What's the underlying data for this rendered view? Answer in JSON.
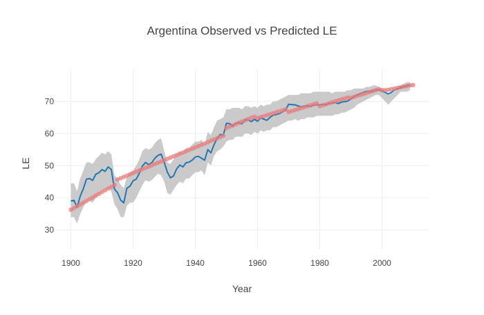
{
  "chart_data": {
    "type": "line",
    "title": "Argentina Observed vs Predicted LE",
    "xlabel": "Year",
    "ylabel": "LE",
    "xlim": [
      1895,
      2015
    ],
    "ylim": [
      24,
      80
    ],
    "x_ticks": [
      1900,
      1920,
      1940,
      1960,
      1980,
      2000
    ],
    "y_ticks": [
      30,
      40,
      50,
      60,
      70
    ],
    "grid": true,
    "legend": "none",
    "colors": {
      "observed": "#1f77b4",
      "predicted": "#e87b7b",
      "band": "#c4c4c4"
    },
    "series": [
      {
        "kind": "band",
        "x": [
          1900,
          1901,
          1902,
          1903,
          1904,
          1905,
          1906,
          1907,
          1908,
          1909,
          1910,
          1911,
          1912,
          1913,
          1914,
          1915,
          1916,
          1917,
          1918,
          1919,
          1920,
          1921,
          1922,
          1923,
          1924,
          1925,
          1926,
          1927,
          1928,
          1929,
          1930,
          1931,
          1932,
          1933,
          1934,
          1935,
          1936,
          1937,
          1938,
          1939,
          1940,
          1941,
          1942,
          1943,
          1944,
          1945,
          1946,
          1947,
          1948,
          1949,
          1950,
          1951,
          1952,
          1953,
          1954,
          1955,
          1956,
          1957,
          1958,
          1959,
          1960,
          1961,
          1962,
          1963,
          1964,
          1965,
          1966,
          1967,
          1968,
          1969,
          1970,
          1971,
          1972,
          1973,
          1974,
          1975,
          1976,
          1977,
          1978,
          1979,
          1980,
          1981,
          1982,
          1983,
          1984,
          1985,
          1986,
          1987,
          1988,
          1989,
          1990,
          1991,
          1992,
          1993,
          1994,
          1995,
          1996,
          1997,
          1998,
          1999,
          2000,
          2001,
          2002,
          2003,
          2004,
          2005,
          2006,
          2007,
          2008,
          2009
        ],
        "upper": [
          44.5,
          44.5,
          42,
          46,
          48.5,
          51,
          51,
          50.5,
          52,
          53,
          54,
          53.5,
          54.5,
          53.5,
          47,
          46,
          44,
          43,
          46.5,
          48,
          48.5,
          50,
          52,
          54.5,
          55.5,
          55,
          55.5,
          57,
          58,
          58.5,
          54.5,
          51,
          50.5,
          52,
          53.5,
          54.5,
          54,
          55.5,
          55.5,
          56.5,
          57.5,
          57.5,
          58,
          56.5,
          60.5,
          59.5,
          62,
          64,
          64.5,
          65,
          67.5,
          67.5,
          68,
          68,
          68,
          67.5,
          68.5,
          68.5,
          68,
          68.5,
          68,
          69,
          68.5,
          69,
          69,
          70,
          70,
          70.5,
          71,
          71.5,
          72,
          72,
          72,
          72,
          72.5,
          72.5,
          72.5,
          72.5,
          73,
          73,
          73,
          73,
          73,
          73,
          72.5,
          73,
          73,
          73,
          73,
          73.5,
          73.5,
          74,
          74,
          74,
          74,
          74.5,
          74.5,
          75,
          75,
          74.5,
          74,
          73.5,
          72,
          72.5,
          73,
          74,
          75,
          75.5,
          76,
          76
        ],
        "lower": [
          34,
          34,
          32,
          35,
          37,
          39,
          39,
          38.5,
          40,
          41,
          42,
          42.5,
          43,
          42,
          38,
          36.5,
          34,
          34,
          37.5,
          38.5,
          38.5,
          40,
          42,
          44,
          45.5,
          45,
          45.5,
          46.5,
          47.5,
          47,
          45,
          41.5,
          41,
          42.5,
          44,
          45,
          44.5,
          46,
          46,
          47,
          48,
          48,
          48.5,
          47,
          51,
          50,
          53,
          54.5,
          55,
          56,
          57.5,
          58,
          58,
          59,
          59,
          59,
          60,
          60,
          59.5,
          60.5,
          60,
          61,
          60.5,
          61,
          61,
          62,
          62,
          62.5,
          63,
          63.5,
          64,
          64,
          64.5,
          64,
          64.5,
          64.5,
          65,
          65,
          65,
          65.5,
          65.5,
          65.5,
          65.5,
          65.5,
          65.5,
          66,
          66,
          66.5,
          66.5,
          67,
          67.5,
          68,
          69,
          69.5,
          70,
          70.5,
          71,
          71.5,
          72,
          72,
          71,
          70,
          69,
          70,
          71,
          72,
          73,
          73,
          73,
          73.5
        ]
      },
      {
        "name": "",
        "kind": "observed",
        "x": [
          1900,
          1901,
          1902,
          1903,
          1904,
          1905,
          1906,
          1907,
          1908,
          1909,
          1910,
          1911,
          1912,
          1913,
          1914,
          1915,
          1916,
          1917,
          1918,
          1919,
          1920,
          1921,
          1922,
          1923,
          1924,
          1925,
          1926,
          1927,
          1928,
          1929,
          1930,
          1931,
          1932,
          1933,
          1934,
          1935,
          1936,
          1937,
          1938,
          1939,
          1940,
          1941,
          1942,
          1943,
          1944,
          1945,
          1946,
          1947,
          1948,
          1949,
          1950,
          1951,
          1952,
          1953,
          1954,
          1955,
          1956,
          1957,
          1958,
          1959,
          1960,
          1961,
          1962,
          1963,
          1964,
          1965,
          1966,
          1967,
          1968,
          1969,
          1970,
          1971,
          1972,
          1973,
          1974,
          1975,
          1976,
          1977,
          1978,
          1979,
          1980,
          1981,
          1982,
          1983,
          1984,
          1985,
          1986,
          1987,
          1988,
          1989,
          1990,
          1991,
          1992,
          1993,
          1994,
          1995,
          1996,
          1997,
          1998,
          1999,
          2000,
          2001,
          2002,
          2003,
          2004,
          2005,
          2006,
          2007,
          2008,
          2009
        ],
        "y": [
          39,
          39.2,
          37,
          40.5,
          42.8,
          45.8,
          46,
          45.4,
          47.3,
          47.8,
          48.8,
          48.2,
          49.6,
          48.8,
          42.7,
          41.6,
          39.3,
          38.4,
          43,
          43.6,
          45.3,
          45.8,
          47.6,
          49.9,
          51,
          50.3,
          50.9,
          52.3,
          53.2,
          53.6,
          51,
          48,
          46.2,
          46.8,
          49,
          50.2,
          49.6,
          50.9,
          51.1,
          51.7,
          52.7,
          52.9,
          52.3,
          51.7,
          55,
          54,
          56.5,
          58.5,
          59.7,
          59.5,
          63.2,
          63.1,
          62.3,
          63.2,
          63.4,
          63,
          64.3,
          64.2,
          63.7,
          64.4,
          63.8,
          64.8,
          64.5,
          64.1,
          65,
          65.7,
          65.9,
          66.2,
          66.7,
          67.3,
          69.1,
          69,
          68.9,
          68.6,
          68.3,
          68.5,
          68.6,
          68.4,
          68.8,
          68.9,
          68.9,
          69.1,
          69,
          69.4,
          69.5,
          69.6,
          69.3,
          69.8,
          69.9,
          70.1,
          70.8,
          71.5,
          72,
          72.4,
          72.8,
          73.1,
          73,
          73.3,
          73.5,
          73.6,
          73.2,
          72.8,
          72.3,
          72.8,
          73.5,
          74,
          74.3,
          74.6,
          74.8,
          75
        ]
      },
      {
        "name": "",
        "kind": "predicted",
        "x": [
          1900,
          1901,
          1902,
          1903,
          1904,
          1905,
          1906,
          1907,
          1908,
          1909,
          1910,
          1911,
          1912,
          1913,
          1914,
          1915,
          1916,
          1917,
          1918,
          1919,
          1920,
          1921,
          1922,
          1923,
          1924,
          1925,
          1926,
          1927,
          1928,
          1929,
          1930,
          1931,
          1932,
          1933,
          1934,
          1935,
          1936,
          1937,
          1938,
          1939,
          1940,
          1941,
          1942,
          1943,
          1944,
          1945,
          1946,
          1947,
          1948,
          1949,
          1950,
          1951,
          1952,
          1953,
          1954,
          1955,
          1956,
          1957,
          1958,
          1959,
          1960,
          1961,
          1962,
          1963,
          1964,
          1965,
          1966,
          1967,
          1968,
          1969,
          1970,
          1971,
          1972,
          1973,
          1974,
          1975,
          1976,
          1977,
          1978,
          1979,
          1980,
          1981,
          1982,
          1983,
          1984,
          1985,
          1986,
          1987,
          1988,
          1989,
          1990,
          1991,
          1992,
          1993,
          1994,
          1995,
          1996,
          1997,
          1998,
          1999,
          2000,
          2001,
          2002,
          2003,
          2004,
          2005,
          2006,
          2007,
          2008,
          2009,
          2010
        ],
        "y": [
          36.3,
          36.8,
          37.4,
          37.9,
          38.5,
          39,
          39.6,
          40.1,
          40.7,
          41.2,
          41.8,
          42.3,
          42.9,
          43.4,
          44,
          45.7,
          46.1,
          46.5,
          46.9,
          47.3,
          47.7,
          48.1,
          48.5,
          48.9,
          49.3,
          49.7,
          50.1,
          50.5,
          50.9,
          51.3,
          51.7,
          52.1,
          52.5,
          52.9,
          53.3,
          53.7,
          54.1,
          54.5,
          54.9,
          55.3,
          55.7,
          56.1,
          56.5,
          56.9,
          57.3,
          57.7,
          58.1,
          58.5,
          58.9,
          59.3,
          61.7,
          62.1,
          62.5,
          62.9,
          63.3,
          63.7,
          64.1,
          64.5,
          64.9,
          65.2,
          64.8,
          65.1,
          65.4,
          65.7,
          66,
          66.3,
          66.6,
          66.9,
          67.2,
          67.5,
          66.7,
          67,
          67.3,
          67.6,
          67.9,
          68.2,
          68.5,
          68.8,
          69.1,
          69.4,
          68.5,
          68.8,
          69.1,
          69.4,
          69.7,
          70,
          70.3,
          70.6,
          70.9,
          71.2,
          71.1,
          71.4,
          71.7,
          72,
          72.3,
          72.6,
          72.9,
          73.2,
          73.5,
          73.8,
          73.5,
          73.5,
          73.6,
          73.8,
          74,
          74.2,
          74.4,
          74.6,
          74.8,
          75,
          75.1
        ]
      }
    ]
  }
}
